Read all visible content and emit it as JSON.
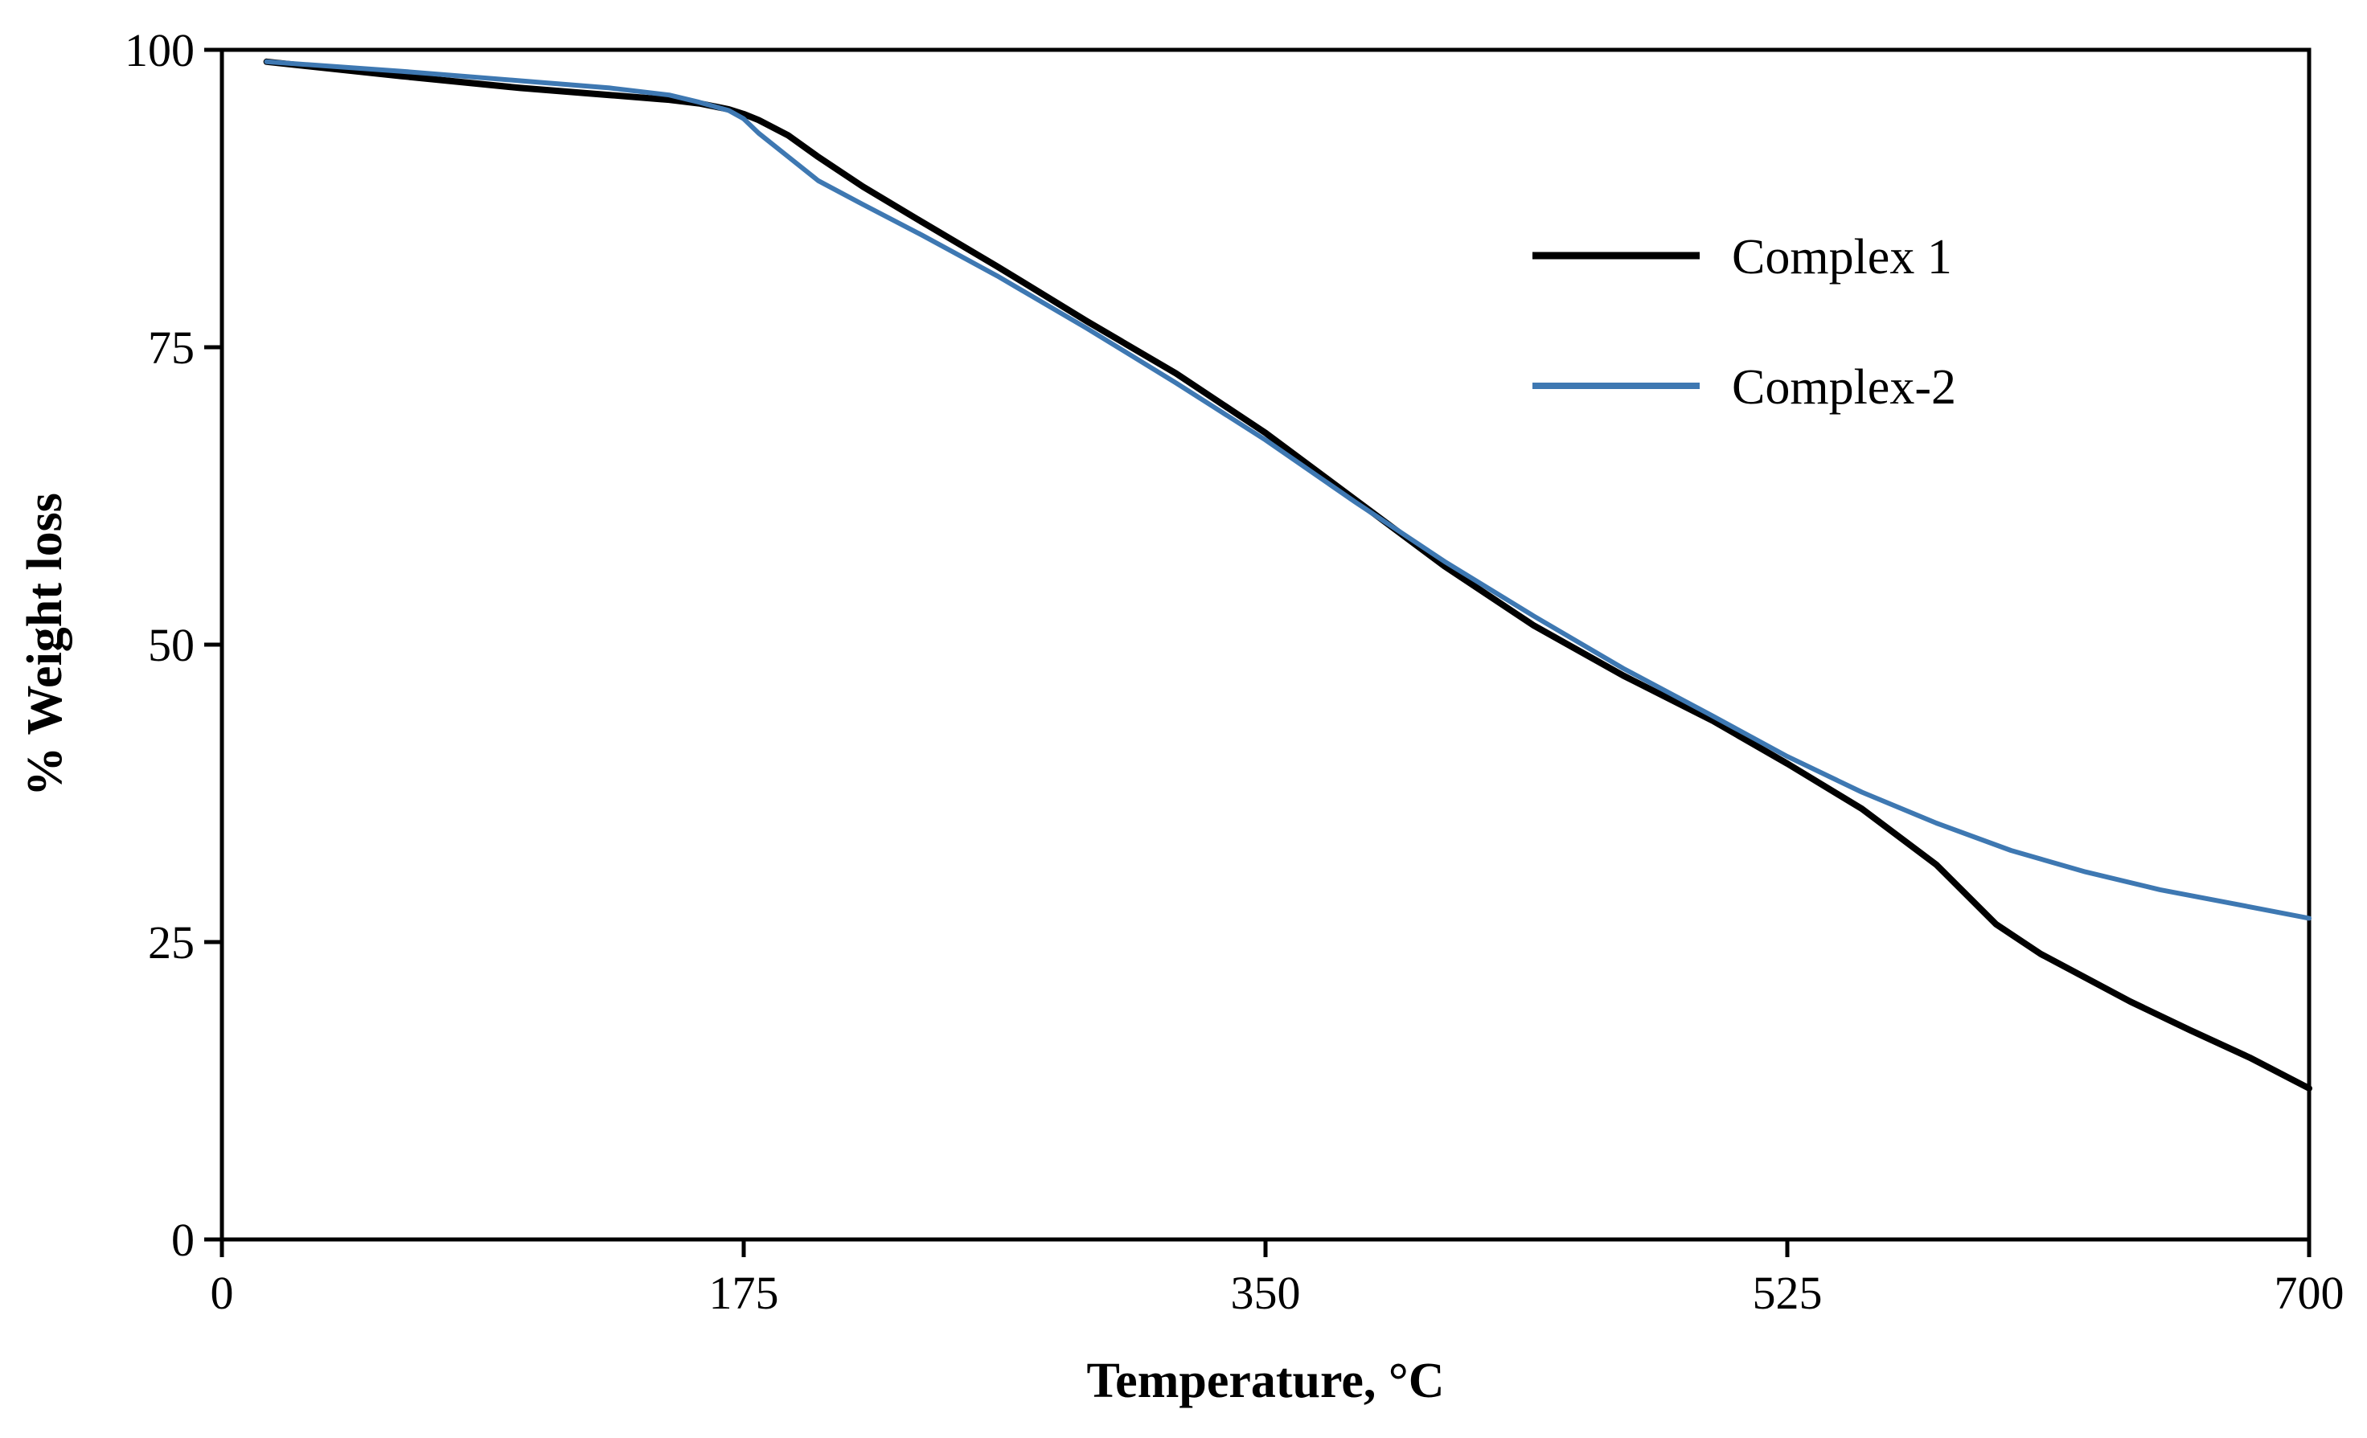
{
  "colors": {
    "complex1": "#000000",
    "complex2": "#3e78b2",
    "axis": "#000000",
    "background": "#ffffff"
  },
  "chart_data": {
    "type": "line",
    "title": "",
    "xlabel": "Temperature, °C",
    "ylabel": "% Weight loss",
    "xlim": [
      0,
      700
    ],
    "ylim": [
      0,
      100
    ],
    "x_ticks": [
      {
        "value": 0,
        "label": "0"
      },
      {
        "value": 175,
        "label": "175"
      },
      {
        "value": 350,
        "label": "350"
      },
      {
        "value": 525,
        "label": "525"
      },
      {
        "value": 700,
        "label": "700"
      }
    ],
    "y_ticks": [
      {
        "value": 0,
        "label": "0"
      },
      {
        "value": 25,
        "label": "25"
      },
      {
        "value": 50,
        "label": "50"
      },
      {
        "value": 75,
        "label": "75"
      },
      {
        "value": 100,
        "label": "100"
      }
    ],
    "grid": false,
    "legend": "top-right",
    "series": [
      {
        "name": "Complex 1",
        "color": "#000000",
        "x": [
          15,
          60,
          100,
          130,
          150,
          160,
          170,
          175,
          180,
          190,
          200,
          215,
          235,
          260,
          290,
          320,
          350,
          380,
          410,
          440,
          470,
          500,
          525,
          550,
          575,
          595,
          610,
          625,
          640,
          660,
          680,
          700
        ],
        "y": [
          99,
          97.8,
          96.8,
          96.2,
          95.8,
          95.5,
          95.0,
          94.6,
          94.1,
          92.8,
          91.0,
          88.5,
          85.5,
          81.8,
          77.2,
          72.8,
          67.8,
          62.2,
          56.6,
          51.6,
          47.4,
          43.6,
          40.0,
          36.2,
          31.5,
          26.5,
          24.0,
          22.0,
          20.0,
          17.6,
          15.3,
          12.7
        ]
      },
      {
        "name": "Complex-2",
        "color": "#3e78b2",
        "x": [
          15,
          60,
          100,
          130,
          150,
          160,
          170,
          175,
          180,
          190,
          200,
          215,
          235,
          260,
          290,
          320,
          350,
          380,
          410,
          440,
          470,
          500,
          525,
          550,
          575,
          600,
          625,
          650,
          675,
          700
        ],
        "y": [
          99,
          98.2,
          97.4,
          96.8,
          96.2,
          95.6,
          94.9,
          94.2,
          93.0,
          91.0,
          89.0,
          87.0,
          84.4,
          81.0,
          76.6,
          72.0,
          67.2,
          62.0,
          57.0,
          52.4,
          48.0,
          44.0,
          40.6,
          37.6,
          35.0,
          32.7,
          30.9,
          29.4,
          28.2,
          27.0
        ]
      }
    ]
  }
}
